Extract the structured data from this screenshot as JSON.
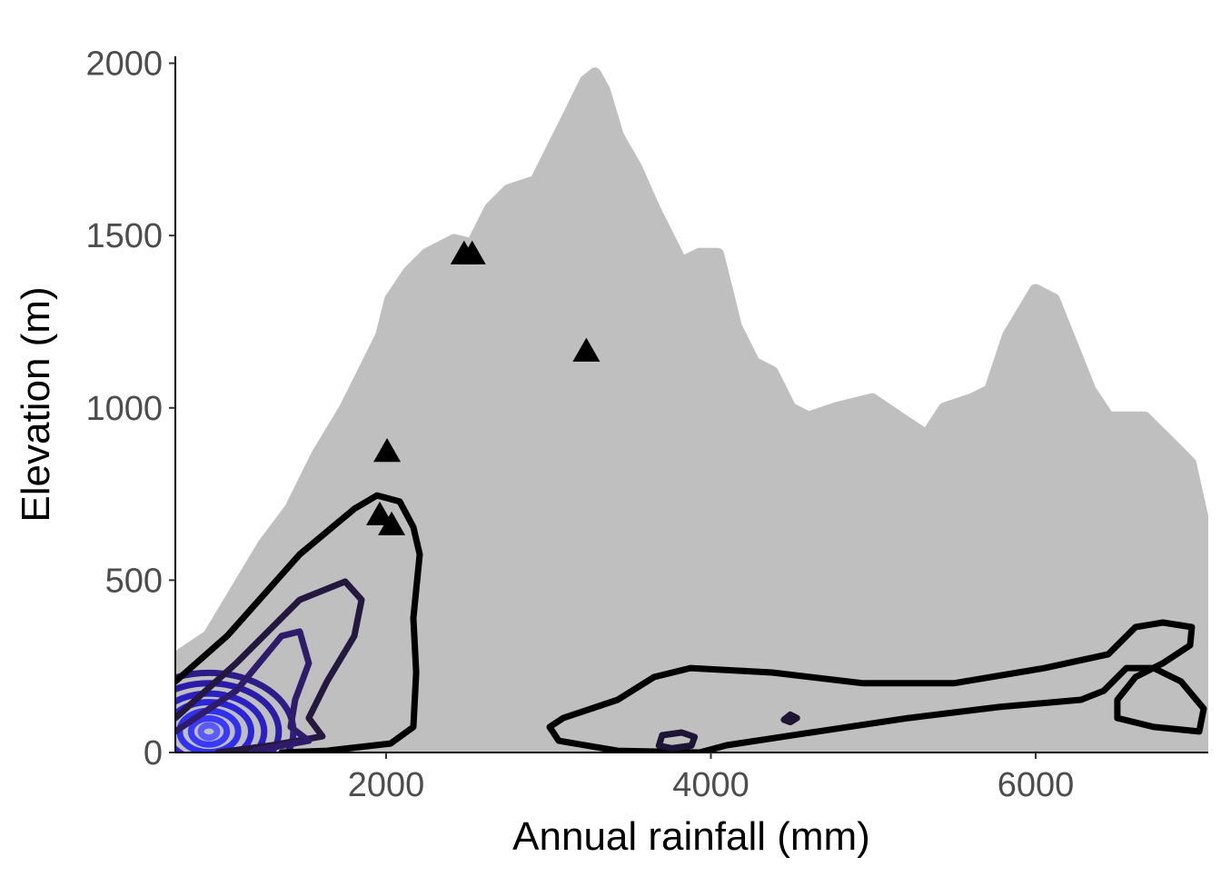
{
  "chart_data": {
    "type": "scatter",
    "title": "",
    "xlabel": "Annual rainfall (mm)",
    "ylabel": "Elevation (m)",
    "xlim": [
      702,
      7063
    ],
    "ylim": [
      0,
      2020
    ],
    "xticks": [
      2000,
      4000,
      6000
    ],
    "yticks": [
      0,
      500,
      1000,
      1500,
      2000
    ],
    "grid": false,
    "colors": {
      "cloud": "#bfbfbf",
      "triangles": "#000000"
    },
    "cloud_envelope": [
      [
        702,
        0
      ],
      [
        702,
        179
      ],
      [
        741,
        285
      ],
      [
        909,
        338
      ],
      [
        1077,
        470
      ],
      [
        1245,
        602
      ],
      [
        1412,
        707
      ],
      [
        1580,
        866
      ],
      [
        1748,
        998
      ],
      [
        1860,
        1103
      ],
      [
        1972,
        1209
      ],
      [
        2028,
        1314
      ],
      [
        2140,
        1393
      ],
      [
        2252,
        1446
      ],
      [
        2419,
        1486
      ],
      [
        2531,
        1473
      ],
      [
        2643,
        1578
      ],
      [
        2755,
        1631
      ],
      [
        2923,
        1657
      ],
      [
        3035,
        1763
      ],
      [
        3147,
        1868
      ],
      [
        3230,
        1948
      ],
      [
        3286,
        1969
      ],
      [
        3342,
        1921
      ],
      [
        3426,
        1789
      ],
      [
        3538,
        1697
      ],
      [
        3650,
        1578
      ],
      [
        3818,
        1420
      ],
      [
        3930,
        1446
      ],
      [
        4042,
        1446
      ],
      [
        4098,
        1341
      ],
      [
        4153,
        1235
      ],
      [
        4265,
        1130
      ],
      [
        4377,
        1103
      ],
      [
        4489,
        998
      ],
      [
        4601,
        971
      ],
      [
        4769,
        998
      ],
      [
        4993,
        1024
      ],
      [
        5160,
        971
      ],
      [
        5328,
        918
      ],
      [
        5440,
        998
      ],
      [
        5608,
        1024
      ],
      [
        5720,
        1050
      ],
      [
        5832,
        1209
      ],
      [
        6000,
        1341
      ],
      [
        6111,
        1314
      ],
      [
        6223,
        1182
      ],
      [
        6335,
        1050
      ],
      [
        6447,
        971
      ],
      [
        6671,
        971
      ],
      [
        6839,
        892
      ],
      [
        6951,
        839
      ],
      [
        7063,
        602
      ],
      [
        7063,
        0
      ]
    ],
    "density_contours": [
      {
        "level": 1,
        "color": "#000000",
        "closed": false,
        "points": [
          [
            702,
            206
          ],
          [
            1021,
            338
          ],
          [
            1468,
            575
          ],
          [
            1804,
            707
          ],
          [
            1944,
            746
          ],
          [
            2084,
            728
          ],
          [
            2168,
            654
          ],
          [
            2207,
            575
          ],
          [
            2168,
            390
          ],
          [
            2185,
            232
          ],
          [
            2168,
            74
          ],
          [
            2028,
            26
          ],
          [
            1636,
            5
          ],
          [
            1356,
            0
          ]
        ]
      },
      {
        "level": 1,
        "color": "#000000",
        "closed": true,
        "points": [
          [
            3007,
            74
          ],
          [
            3091,
            100
          ],
          [
            3426,
            153
          ],
          [
            3650,
            219
          ],
          [
            3874,
            245
          ],
          [
            4377,
            232
          ],
          [
            4937,
            201
          ],
          [
            5496,
            201
          ],
          [
            6055,
            245
          ],
          [
            6447,
            285
          ],
          [
            6615,
            364
          ],
          [
            6783,
            377
          ],
          [
            6962,
            364
          ],
          [
            6951,
            311
          ],
          [
            6783,
            259
          ],
          [
            6615,
            219
          ],
          [
            6503,
            153
          ],
          [
            6503,
            100
          ],
          [
            6727,
            74
          ],
          [
            7007,
            61
          ],
          [
            7035,
            127
          ],
          [
            6895,
            206
          ],
          [
            6727,
            245
          ],
          [
            6559,
            245
          ],
          [
            6419,
            179
          ],
          [
            6279,
            153
          ],
          [
            5776,
            132
          ],
          [
            5216,
            100
          ],
          [
            4657,
            61
          ],
          [
            4098,
            21
          ],
          [
            3930,
            0
          ],
          [
            3426,
            5
          ],
          [
            3063,
            34
          ]
        ]
      },
      {
        "level": 2,
        "color": "#1e1433",
        "closed": true,
        "points": [
          [
            3680,
            20
          ],
          [
            3700,
            50
          ],
          [
            3820,
            58
          ],
          [
            3900,
            45
          ],
          [
            3880,
            20
          ],
          [
            3760,
            12
          ]
        ]
      },
      {
        "level": 2,
        "color": "#1e1433",
        "closed": true,
        "points": [
          [
            4450,
            95
          ],
          [
            4489,
            110
          ],
          [
            4530,
            100
          ],
          [
            4489,
            88
          ]
        ]
      },
      {
        "level": 2,
        "color": "#24183f",
        "closed": false,
        "points": [
          [
            702,
            100
          ],
          [
            1077,
            259
          ],
          [
            1468,
            443
          ],
          [
            1748,
            496
          ],
          [
            1849,
            443
          ],
          [
            1804,
            338
          ],
          [
            1636,
            206
          ],
          [
            1524,
            100
          ],
          [
            1608,
            47
          ],
          [
            1300,
            21
          ],
          [
            965,
            0
          ]
        ]
      },
      {
        "level": 3,
        "color": "#2e1c6a",
        "closed": false,
        "points": [
          [
            702,
            61
          ],
          [
            1077,
            179
          ],
          [
            1356,
            338
          ],
          [
            1468,
            351
          ],
          [
            1524,
            259
          ],
          [
            1440,
            153
          ],
          [
            1412,
            74
          ],
          [
            1524,
            34
          ],
          [
            1189,
            5
          ]
        ]
      }
    ],
    "density_core": {
      "center": [
        909,
        61
      ],
      "radii": [
        [
          520,
          170,
          "#2c1c8a"
        ],
        [
          430,
          140,
          "#2a1ca8"
        ],
        [
          340,
          110,
          "#2a20c4"
        ],
        [
          260,
          85,
          "#2a24dc"
        ],
        [
          180,
          60,
          "#3030f0"
        ],
        [
          110,
          38,
          "#3a3aff"
        ],
        [
          50,
          18,
          "#5a5aff"
        ]
      ]
    },
    "triangles": [
      [
        2480,
        1446
      ],
      [
        2530,
        1446
      ],
      [
        3233,
        1164
      ],
      [
        2006,
        873
      ],
      [
        1961,
        689
      ],
      [
        2034,
        660
      ]
    ]
  }
}
